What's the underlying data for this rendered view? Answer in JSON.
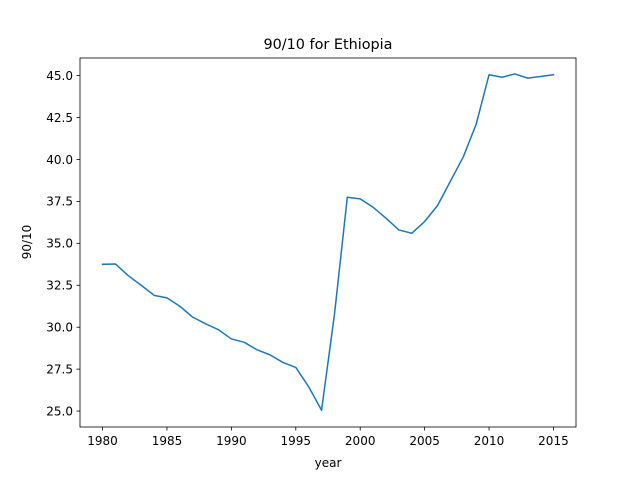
{
  "chart_data": {
    "type": "line",
    "title": "90/10 for Ethiopia",
    "xlabel": "year",
    "ylabel": "90/10",
    "xlim": [
      1978.25,
      2016.75
    ],
    "ylim": [
      24.05,
      46.05
    ],
    "x_ticks": [
      1980,
      1985,
      1990,
      1995,
      2000,
      2005,
      2010,
      2015
    ],
    "x_tick_labels": [
      "1980",
      "1985",
      "1990",
      "1995",
      "2000",
      "2005",
      "2010",
      "2015"
    ],
    "y_ticks": [
      25.0,
      27.5,
      30.0,
      32.5,
      35.0,
      37.5,
      40.0,
      42.5,
      45.0
    ],
    "y_tick_labels": [
      "25.0",
      "27.5",
      "30.0",
      "32.5",
      "35.0",
      "37.5",
      "40.0",
      "42.5",
      "45.0"
    ],
    "grid": false,
    "legend": "none",
    "series": [
      {
        "color": "#1f77b4",
        "x": [
          1980,
          1981,
          1982,
          1983,
          1984,
          1985,
          1986,
          1987,
          1988,
          1989,
          1990,
          1991,
          1992,
          1993,
          1994,
          1995,
          1996,
          1997,
          1998,
          1999,
          2000,
          2001,
          2002,
          2003,
          2004,
          2005,
          2006,
          2007,
          2008,
          2009,
          2010,
          2011,
          2012,
          2013,
          2014,
          2015
        ],
        "y": [
          33.75,
          33.77,
          33.07,
          32.5,
          31.9,
          31.75,
          31.25,
          30.6,
          30.2,
          29.85,
          29.3,
          29.1,
          28.65,
          28.35,
          27.9,
          27.6,
          26.45,
          25.05,
          30.75,
          37.75,
          37.65,
          37.15,
          36.5,
          35.8,
          35.6,
          36.3,
          37.25,
          38.7,
          40.15,
          42.1,
          45.05,
          44.9,
          45.1,
          44.85,
          44.95,
          45.05
        ]
      }
    ]
  }
}
